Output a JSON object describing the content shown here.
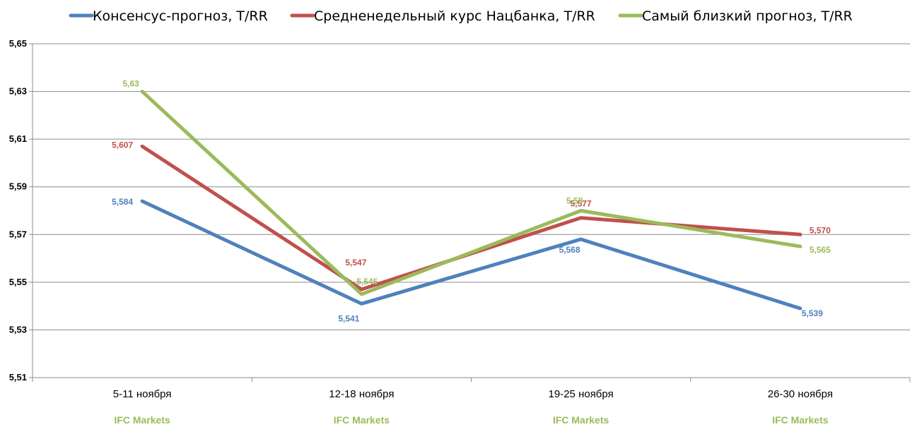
{
  "chart_data": {
    "type": "line",
    "categories": [
      "5-11 ноября",
      "12-18 ноября",
      "19-25 ноября",
      "26-30 ноября"
    ],
    "source_labels": [
      "IFC Markets",
      "IFC Markets",
      "IFC Markets",
      "IFC Markets"
    ],
    "ylim": [
      5.51,
      5.65
    ],
    "yticks": [
      5.51,
      5.53,
      5.55,
      5.57,
      5.59,
      5.61,
      5.63,
      5.65
    ],
    "ytick_labels": [
      "5,51",
      "5,53",
      "5,55",
      "5,57",
      "5,59",
      "5,61",
      "5,63",
      "5,65"
    ],
    "grid": true,
    "legend_position": "top",
    "source_color": "#9bbb59",
    "series": [
      {
        "name": "Консенсус-прогноз,  T/RR",
        "color": "#4f81bd",
        "values": [
          5.584,
          5.541,
          5.568,
          5.539
        ],
        "labels": [
          "5,584",
          "5,541",
          "5,568",
          "5,539"
        ]
      },
      {
        "name": "Средненедельный  курс Нацбанка, T/RR",
        "color": "#c0504d",
        "values": [
          5.607,
          5.547,
          5.577,
          5.57
        ],
        "labels": [
          "5,607",
          "5,547",
          "5,577",
          "5,570"
        ]
      },
      {
        "name": "Самый близкий прогноз, T/RR",
        "color": "#9bbb59",
        "values": [
          5.63,
          5.545,
          5.58,
          5.565
        ],
        "labels": [
          "5,63",
          "5,545",
          "5,58",
          "5,565"
        ]
      }
    ]
  }
}
